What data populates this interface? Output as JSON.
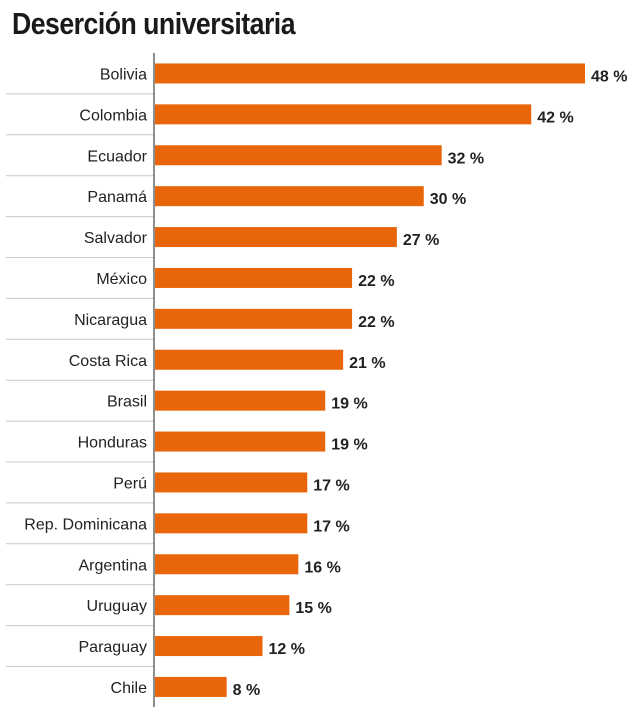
{
  "chart_data": {
    "type": "bar",
    "orientation": "horizontal",
    "title": "Deserción universitaria",
    "categories": [
      "Bolivia",
      "Colombia",
      "Ecuador",
      "Panamá",
      "Salvador",
      "México",
      "Nicaragua",
      "Costa Rica",
      "Brasil",
      "Honduras",
      "Perú",
      "Rep. Dominicana",
      "Argentina",
      "Uruguay",
      "Paraguay",
      "Chile"
    ],
    "values": [
      48,
      42,
      32,
      30,
      27,
      22,
      22,
      21,
      19,
      19,
      17,
      17,
      16,
      15,
      12,
      8
    ],
    "value_labels": [
      "48 %",
      "42 %",
      "32 %",
      "30 %",
      "27 %",
      "22 %",
      "22 %",
      "21 %",
      "19 %",
      "19 %",
      "17 %",
      "17 %",
      "16 %",
      "15 %",
      "12 %",
      "8 %"
    ],
    "xlim": [
      0,
      48
    ],
    "grid": true,
    "colors": {
      "bar": "#E8650A",
      "gridline": "#c8c8c8",
      "axis": "#444444"
    }
  }
}
